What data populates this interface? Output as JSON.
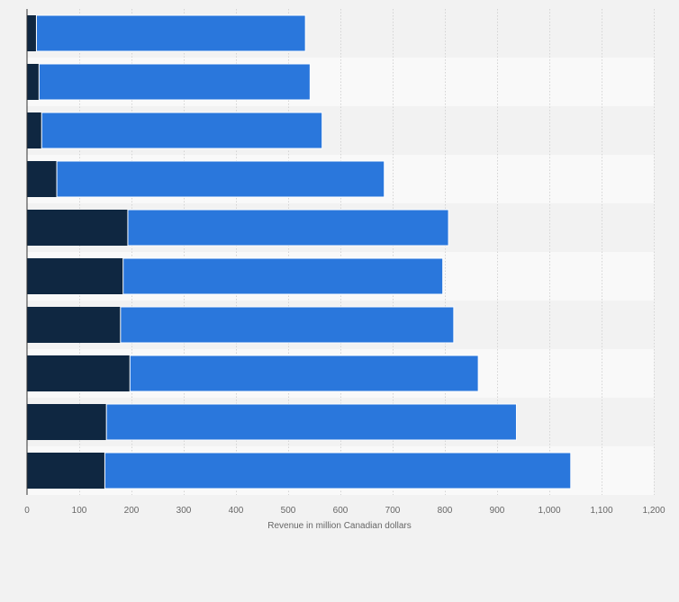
{
  "chart_data": {
    "type": "bar",
    "orientation": "horizontal",
    "stacked": true,
    "xlabel": "Revenue in million Canadian dollars",
    "xlim": [
      0,
      1200
    ],
    "x_ticks": [
      "0",
      "100",
      "200",
      "300",
      "400",
      "500",
      "600",
      "700",
      "800",
      "900",
      "1,000",
      "1,100",
      "1,200"
    ],
    "grid": true,
    "series": [
      {
        "color": "#0f2741",
        "values": [
          18,
          23,
          28,
          57,
          193,
          184,
          179,
          197,
          152,
          149
        ]
      },
      {
        "color": "#2a77dc",
        "values": [
          515,
          519,
          537,
          627,
          614,
          612,
          638,
          667,
          785,
          892
        ]
      }
    ]
  }
}
